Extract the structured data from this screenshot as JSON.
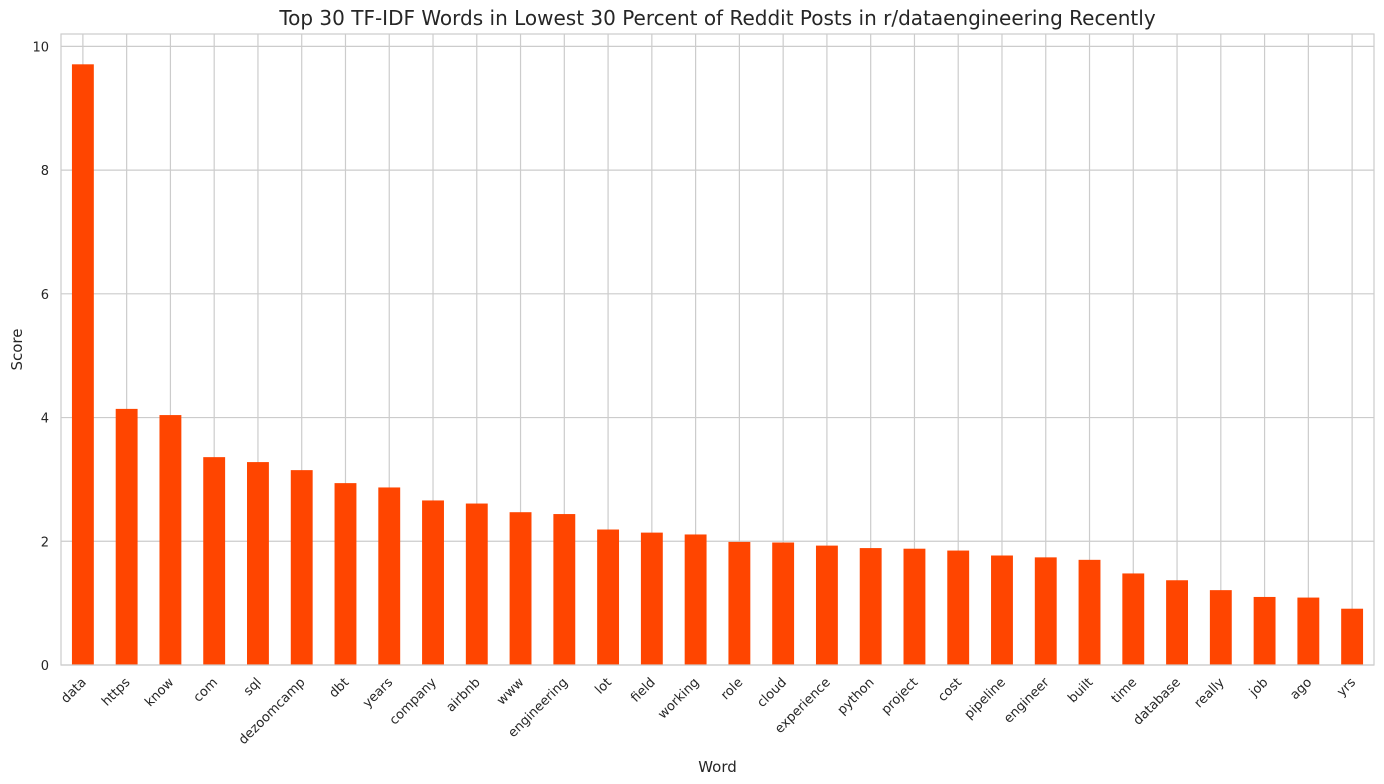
{
  "chart_data": {
    "type": "bar",
    "title": "Top 30 TF-IDF Words in Lowest 30 Percent of Reddit Posts in r/dataengineering Recently",
    "xlabel": "Word",
    "ylabel": "Score",
    "ylim": [
      0,
      10.2
    ],
    "yticks": [
      0,
      2,
      4,
      6,
      8,
      10
    ],
    "grid": true,
    "bar_color": "#ff4500",
    "categories": [
      "data",
      "https",
      "know",
      "com",
      "sql",
      "dezoomcamp",
      "dbt",
      "years",
      "company",
      "airbnb",
      "www",
      "engineering",
      "lot",
      "field",
      "working",
      "role",
      "cloud",
      "experience",
      "python",
      "project",
      "cost",
      "pipeline",
      "engineer",
      "built",
      "time",
      "database",
      "really",
      "job",
      "ago",
      "yrs"
    ],
    "values": [
      9.71,
      4.14,
      4.04,
      3.36,
      3.28,
      3.15,
      2.94,
      2.87,
      2.66,
      2.61,
      2.47,
      2.44,
      2.19,
      2.14,
      2.11,
      1.99,
      1.98,
      1.93,
      1.89,
      1.88,
      1.85,
      1.77,
      1.74,
      1.7,
      1.48,
      1.37,
      1.21,
      1.1,
      1.09,
      0.91
    ]
  }
}
